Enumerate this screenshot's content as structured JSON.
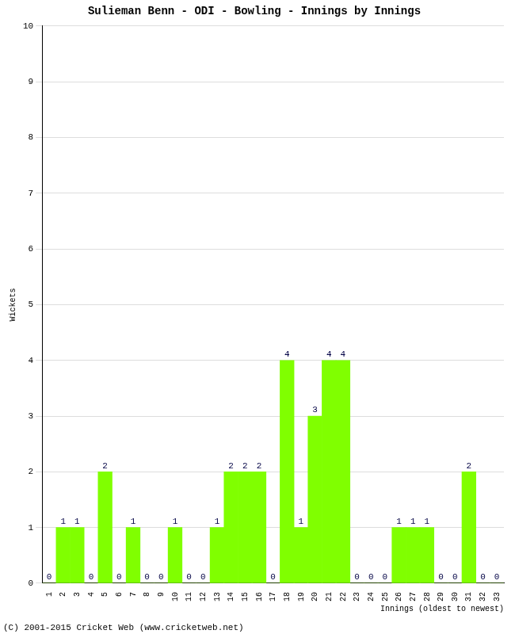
{
  "chart_data": {
    "type": "bar",
    "title": "Sulieman Benn - ODI - Bowling - Innings by Innings",
    "x_label": "Innings (oldest to newest)",
    "y_label": "Wickets",
    "annotations": [
      "(C) 2001-2015 Cricket Web (www.cricketweb.net)"
    ],
    "categories": [
      "1",
      "2",
      "3",
      "4",
      "5",
      "6",
      "7",
      "8",
      "9",
      "10",
      "11",
      "12",
      "13",
      "14",
      "15",
      "16",
      "17",
      "18",
      "19",
      "20",
      "21",
      "22",
      "23",
      "24",
      "25",
      "26",
      "27",
      "28",
      "29",
      "30",
      "31",
      "32",
      "33"
    ],
    "values": [
      0,
      1,
      1,
      0,
      2,
      0,
      1,
      0,
      0,
      1,
      0,
      0,
      1,
      2,
      2,
      2,
      0,
      4,
      1,
      3,
      4,
      4,
      0,
      0,
      0,
      1,
      1,
      1,
      0,
      0,
      2,
      0,
      0
    ],
    "color": "#80ff00",
    "ylim": [
      0,
      10
    ],
    "yticks": [
      0,
      1,
      2,
      3,
      4,
      5,
      6,
      7,
      8,
      9,
      10
    ],
    "grid": true,
    "data_labels": true
  }
}
